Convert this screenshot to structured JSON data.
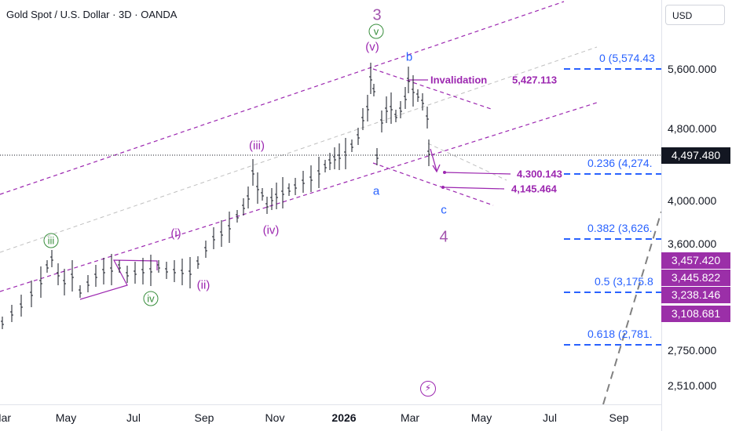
{
  "header": {
    "title": "Gold Spot / U.S. Dollar · 3D · OANDA"
  },
  "currency": "USD",
  "colors": {
    "purple": "#9c27b0",
    "blue": "#2962ff",
    "green": "#388e3c",
    "candle": "#131722"
  },
  "chart_data": {
    "type": "candlestick",
    "symbol": "Gold Spot / U.S. Dollar",
    "timeframe": "3D",
    "x_tick_labels": [
      "Mar",
      "May",
      "Jul",
      "Sep",
      "Nov",
      "2026",
      "Mar",
      "May",
      "Jul",
      "Sep"
    ],
    "y_tick_labels": [
      "5,600.000",
      "4,800.000",
      "4,000.000",
      "3,600.000",
      "2,750.000",
      "2,510.000"
    ],
    "last_price": "4,497.480",
    "price_badges": [
      "3,457.420",
      "3,445.822",
      "3,238.146",
      "3,108.681"
    ],
    "fib_levels": [
      {
        "ratio": "0",
        "label": "0 (5,574.43",
        "price": 5574.43
      },
      {
        "ratio": "0.236",
        "label": "0.236 (4,274.",
        "price": 4274
      },
      {
        "ratio": "0.382",
        "label": "0.382 (3,626.",
        "price": 3626
      },
      {
        "ratio": "0.5",
        "label": "0.5 (3,175.8",
        "price": 3175.8
      },
      {
        "ratio": "0.618",
        "label": "0.618 (2,781.",
        "price": 2781
      }
    ],
    "annotations": {
      "invalidation_label": "Invalidation",
      "invalidation_price": "5,427.113",
      "target_1": "4.300.143",
      "target_2": "4,145.464"
    },
    "wave_labels": {
      "primary_3": "3",
      "primary_4": "4",
      "minor_v": "v",
      "minor_iii": "iii",
      "minor_iv": "iv",
      "sub_v": "(v)",
      "sub_iii": "(iii)",
      "sub_iv": "(iv)",
      "sub_i": "(i)",
      "sub_ii": "(ii)",
      "abc_a": "a",
      "abc_b": "b",
      "abc_c": "c"
    }
  }
}
